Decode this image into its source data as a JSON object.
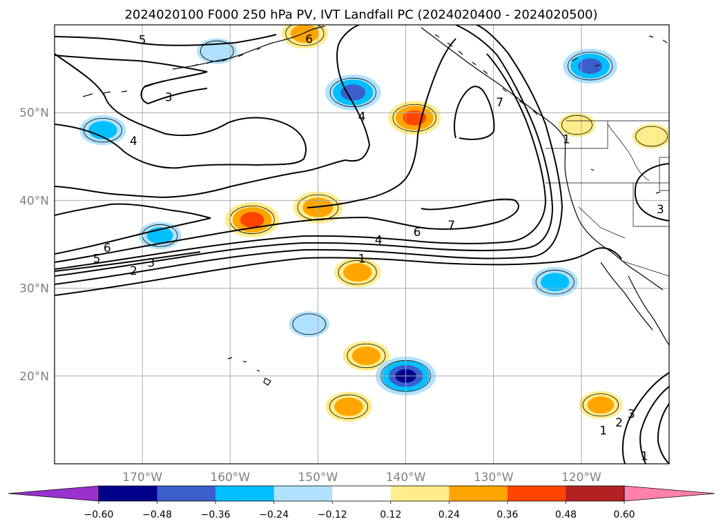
{
  "chart_data": {
    "type": "map-contour",
    "title": "2024020100 F000 250 hPa PV, IVT Landfall PC (2024020400 - 2024020500)",
    "lon_range": [
      -180,
      -110
    ],
    "lat_range": [
      10,
      60
    ],
    "lon_ticks": [
      {
        "value": -170,
        "label": "170°W"
      },
      {
        "value": -160,
        "label": "160°W"
      },
      {
        "value": -150,
        "label": "150°W"
      },
      {
        "value": -140,
        "label": "140°W"
      },
      {
        "value": -130,
        "label": "130°W"
      },
      {
        "value": -120,
        "label": "120°W"
      }
    ],
    "lat_ticks": [
      {
        "value": 20,
        "label": "20°N"
      },
      {
        "value": 30,
        "label": "30°N"
      },
      {
        "value": 40,
        "label": "40°N"
      },
      {
        "value": 50,
        "label": "50°N"
      }
    ],
    "grid": true,
    "colorbar": {
      "orientation": "horizontal",
      "extend": "both",
      "levels": [
        -0.6,
        -0.48,
        -0.36,
        -0.24,
        -0.12,
        0.12,
        0.24,
        0.36,
        0.48,
        0.6
      ],
      "tick_labels": [
        "−0.60",
        "−0.48",
        "−0.36",
        "−0.24",
        "−0.12",
        "0.12",
        "0.24",
        "0.36",
        "0.48",
        "0.60"
      ],
      "colors": [
        "#9932cc",
        "#00008b",
        "#3a5fcd",
        "#00bfff",
        "#b0e2ff",
        "#ffffff",
        "#ffec8b",
        "#ffa500",
        "#ff4500",
        "#b22222",
        "#ff82ab"
      ]
    },
    "pv_contour_labels": [
      {
        "label": "5",
        "lon": -170,
        "lat": 58.3
      },
      {
        "label": "3",
        "lon": -167,
        "lat": 51.8
      },
      {
        "label": "4",
        "lon": -171,
        "lat": 46.8
      },
      {
        "label": "6",
        "lon": -151,
        "lat": 58.4
      },
      {
        "label": "4",
        "lon": -145,
        "lat": 49.6
      },
      {
        "label": "7",
        "lon": -129.3,
        "lat": 51.2
      },
      {
        "label": "1",
        "lon": -121.7,
        "lat": 47.0
      },
      {
        "label": "7",
        "lon": -134.8,
        "lat": 37.2
      },
      {
        "label": "6",
        "lon": -138.7,
        "lat": 36.4
      },
      {
        "label": "4",
        "lon": -143.1,
        "lat": 35.5
      },
      {
        "label": "1",
        "lon": -145.0,
        "lat": 33.4
      },
      {
        "label": "6",
        "lon": -174.0,
        "lat": 34.6
      },
      {
        "label": "5",
        "lon": -175.2,
        "lat": 33.4
      },
      {
        "label": "3",
        "lon": -169.0,
        "lat": 32.9
      },
      {
        "label": "2",
        "lon": -171.0,
        "lat": 32.0
      },
      {
        "label": "3",
        "lon": -111.0,
        "lat": 39.0
      },
      {
        "label": "1",
        "lon": -117.5,
        "lat": 13.8
      },
      {
        "label": "2",
        "lon": -115.7,
        "lat": 14.7
      },
      {
        "label": "3",
        "lon": -114.3,
        "lat": 15.7
      },
      {
        "label": "1",
        "lon": -112.8,
        "lat": 10.9
      }
    ],
    "ivt_pc_anomalies": [
      {
        "lon": -151.5,
        "lat": 59.0,
        "value": 0.3
      },
      {
        "lon": -146.0,
        "lat": 52.3,
        "value": -0.42
      },
      {
        "lon": -139.0,
        "lat": 49.4,
        "value": 0.38
      },
      {
        "lon": -119.0,
        "lat": 55.3,
        "value": -0.4
      },
      {
        "lon": -174.5,
        "lat": 48.0,
        "value": -0.3
      },
      {
        "lon": -157.5,
        "lat": 37.8,
        "value": 0.4
      },
      {
        "lon": -150.0,
        "lat": 39.2,
        "value": 0.34
      },
      {
        "lon": -168.0,
        "lat": 36.0,
        "value": -0.25
      },
      {
        "lon": -145.5,
        "lat": 31.8,
        "value": 0.3
      },
      {
        "lon": -123.0,
        "lat": 30.7,
        "value": -0.3
      },
      {
        "lon": -151.0,
        "lat": 25.9,
        "value": -0.22
      },
      {
        "lon": -144.5,
        "lat": 22.3,
        "value": 0.3
      },
      {
        "lon": -140.0,
        "lat": 20.0,
        "value": -0.48
      },
      {
        "lon": -146.5,
        "lat": 16.5,
        "value": 0.3
      },
      {
        "lon": -117.8,
        "lat": 16.7,
        "value": 0.26
      },
      {
        "lon": -120.5,
        "lat": 48.6,
        "value": 0.18
      },
      {
        "lon": -112.0,
        "lat": 47.3,
        "value": 0.2
      },
      {
        "lon": -161.5,
        "lat": 57.0,
        "value": -0.22
      }
    ]
  }
}
